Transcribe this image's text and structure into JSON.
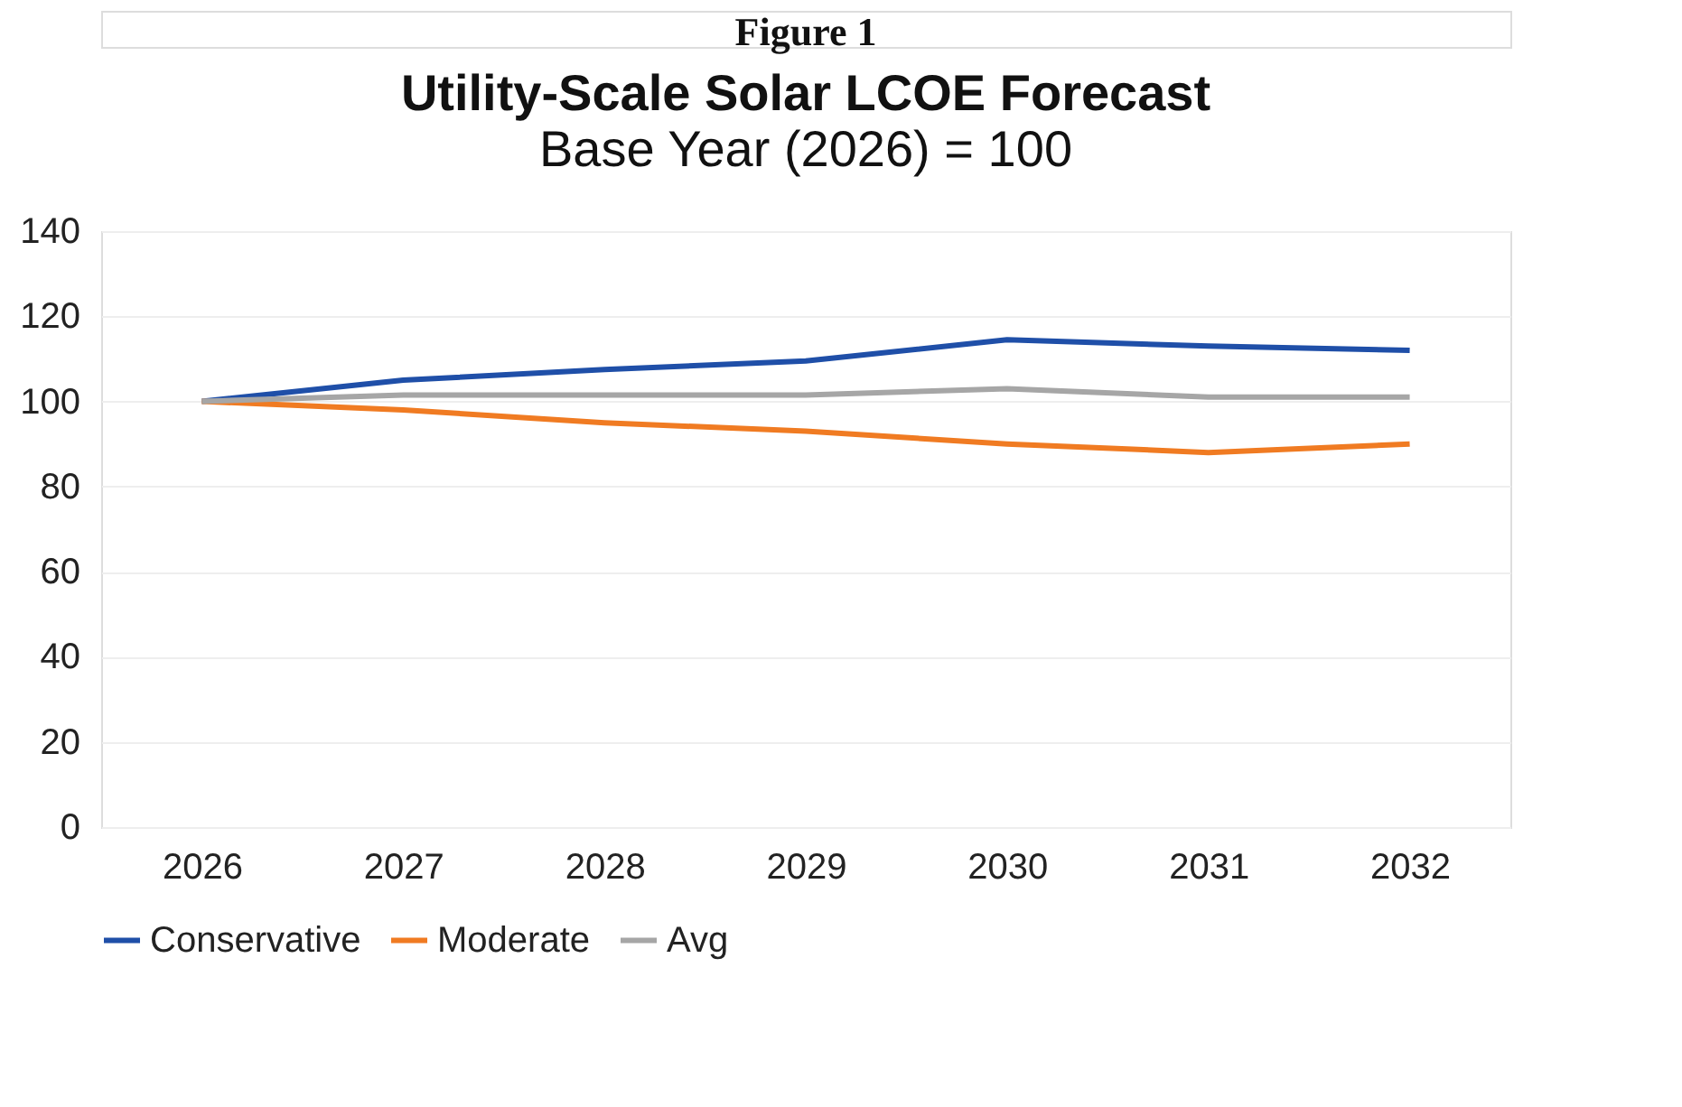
{
  "chart_data": {
    "type": "line",
    "title": "Utility-Scale Solar LCOE Forecast",
    "subtitle": "Base Year (2026) = 100",
    "annotations": [
      "Figure 1"
    ],
    "categories": [
      "2026",
      "2027",
      "2028",
      "2029",
      "2030",
      "2031",
      "2032"
    ],
    "series": [
      {
        "name": "Conservative",
        "color": "#1f4fa8",
        "values": [
          100,
          105,
          107.5,
          109.5,
          114.5,
          113,
          112
        ]
      },
      {
        "name": "Moderate",
        "color": "#f07b22",
        "values": [
          100,
          98,
          95,
          93,
          90,
          88,
          90
        ]
      },
      {
        "name": "Avg",
        "color": "#a6a6a6",
        "values": [
          100,
          101.5,
          101.5,
          101.5,
          103,
          101,
          101
        ]
      }
    ],
    "ylim": [
      0,
      140
    ],
    "yticks": [
      0,
      20,
      40,
      60,
      80,
      100,
      120,
      140
    ],
    "grid": "y",
    "legend": "bottom",
    "marker": "none",
    "line_style": "solid"
  }
}
